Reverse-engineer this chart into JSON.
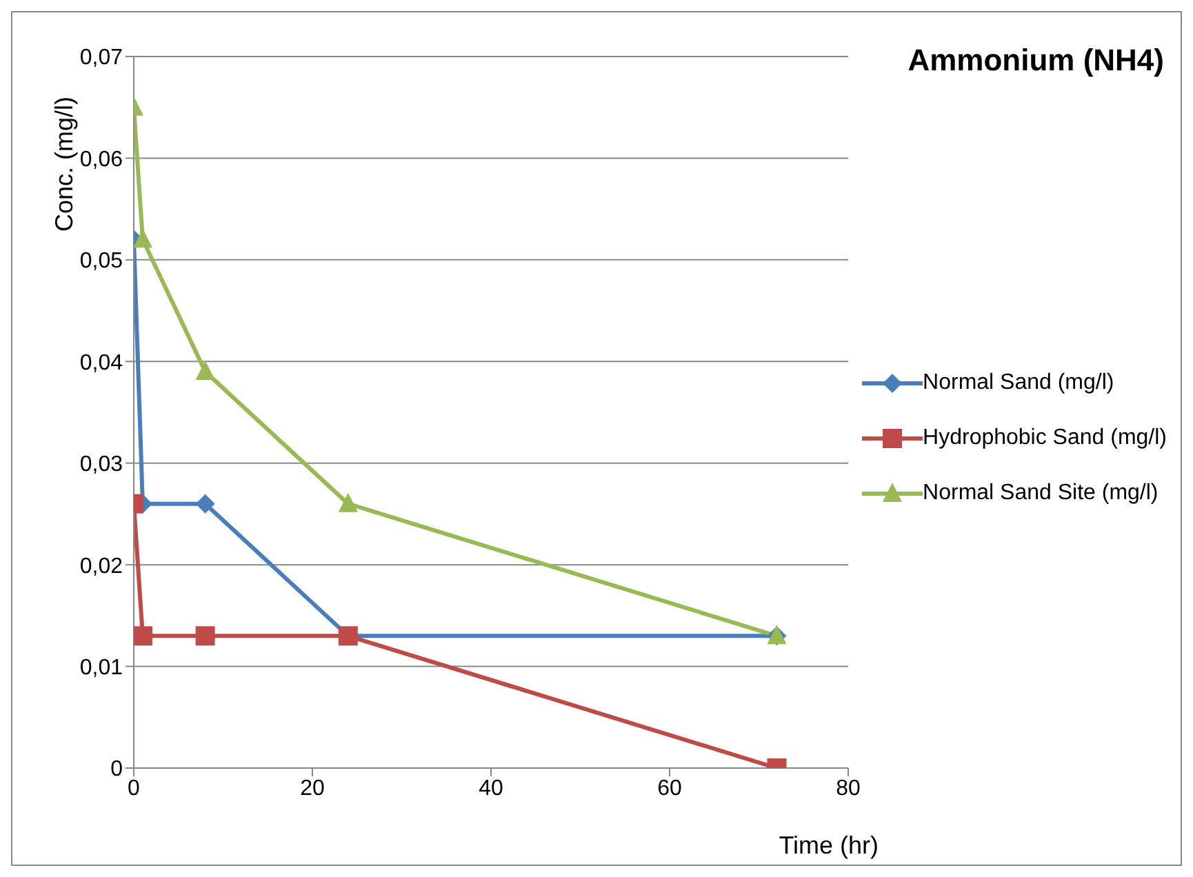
{
  "chart_data": {
    "type": "line",
    "title": "Ammonium (NH4)",
    "xlabel": "Time (hr)",
    "ylabel": "Conc. (mg/l)",
    "x": [
      0,
      1,
      8,
      24,
      72
    ],
    "series": [
      {
        "name": "Normal Sand (mg/l)",
        "color": "#4a7ebb",
        "marker": "diamond",
        "values": [
          0.052,
          0.026,
          0.026,
          0.013,
          0.013
        ]
      },
      {
        "name": "Hydrophobic Sand (mg/l)",
        "color": "#be4b48",
        "marker": "square",
        "values": [
          0.026,
          0.013,
          0.013,
          0.013,
          0
        ]
      },
      {
        "name": "Normal Sand Site (mg/l)",
        "color": "#98b954",
        "marker": "triangle",
        "values": [
          0.065,
          0.052,
          0.039,
          0.026,
          0.013
        ]
      }
    ],
    "xlim": [
      0,
      80
    ],
    "xticks": [
      0,
      20,
      40,
      60,
      80
    ],
    "ylim": [
      0,
      0.07
    ],
    "yticks": [
      0,
      {
        "value": 0.01,
        "label": "0,01"
      },
      {
        "value": 0.02,
        "label": "0,02"
      },
      {
        "value": 0.03,
        "label": "0,03"
      },
      {
        "value": 0.04,
        "label": "0,04"
      },
      {
        "value": 0.05,
        "label": "0,05"
      },
      {
        "value": 0.06,
        "label": "0,06"
      },
      {
        "value": 0.07,
        "label": "0,07"
      }
    ],
    "grid": "y",
    "legend": "right",
    "line_style": "solid"
  }
}
